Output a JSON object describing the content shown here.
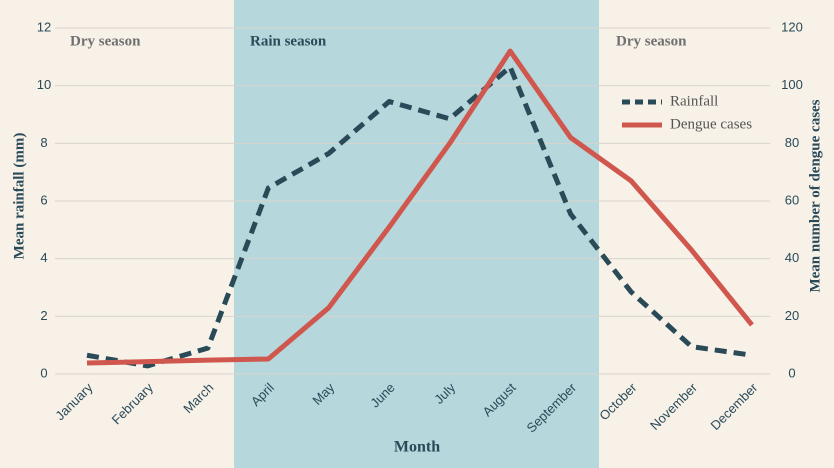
{
  "chart_data": {
    "type": "line",
    "x_label": "Month",
    "y_label": "Mean rainfall (mm)",
    "y2_label": "Mean number of dengue cases",
    "annotations": [
      "Dry season",
      "Rain season",
      "Dry season"
    ],
    "categories": [
      "January",
      "February",
      "March",
      "April",
      "May",
      "June",
      "July",
      "August",
      "September",
      "October",
      "November",
      "December"
    ],
    "series": [
      {
        "name": "Rainfall",
        "color": "#2a4a58",
        "dash": true,
        "values": [
          0.65,
          0.28,
          0.9,
          6.45,
          7.65,
          9.45,
          8.85,
          10.65,
          5.55,
          2.85,
          0.95,
          0.65
        ]
      },
      {
        "name": "Dengue cases",
        "color": "#d0574d",
        "dash": false,
        "axis": "y2",
        "values": [
          3.8,
          4.3,
          4.8,
          5.2,
          23,
          51,
          80,
          112,
          82,
          67,
          43,
          17
        ]
      }
    ],
    "ylim": [
      0,
      12
    ],
    "yticks": [
      0,
      2,
      4,
      6,
      8,
      10,
      12
    ],
    "y2lim": [
      0,
      120
    ],
    "y2ticks": [
      0,
      20,
      40,
      60,
      80,
      100,
      120
    ],
    "grid": true,
    "legend": "upper right",
    "shade_color": "#b6d7dc"
  }
}
